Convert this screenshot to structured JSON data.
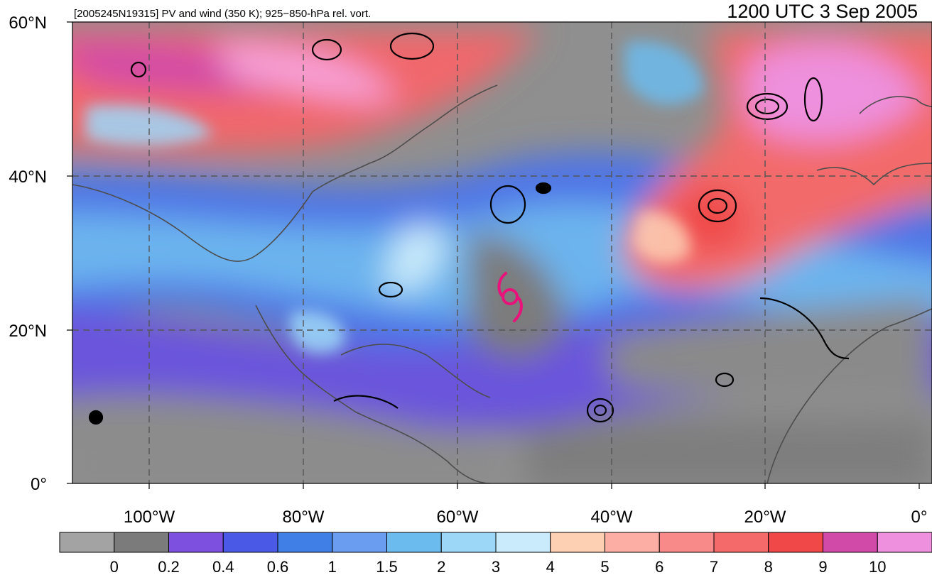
{
  "header": {
    "case_label": "[2005245N19315] PV and wind (350 K); 925−850-hPa rel. vort.",
    "valid_time": "1200 UTC 3 Sep 2005"
  },
  "map": {
    "latitude_labels": [
      "60°N",
      "40°N",
      "20°N",
      "0°"
    ],
    "longitude_labels": [
      "100°W",
      "80°W",
      "60°W",
      "40°W",
      "20°W",
      "0°"
    ],
    "gridlines": "dashed",
    "storm_symbol": "tropical-cyclone-icon",
    "storm_color": "#e8127a",
    "vorticity_contour_color": "#000000",
    "wind_barb_color": "#555555"
  },
  "colorbar": {
    "colors": [
      "#a3a3a3",
      "#7b7b7b",
      "#7d50e0",
      "#4a5ae6",
      "#3f7fe6",
      "#6a9cf0",
      "#6cbbee",
      "#9dd7f8",
      "#c9ebfb",
      "#fdcfb3",
      "#fcaea4",
      "#f98a8a",
      "#f46a6a",
      "#f04848",
      "#d24aa8",
      "#ee90dd"
    ],
    "labels": [
      "0",
      "0.2",
      "0.4",
      "0.6",
      "1",
      "1.5",
      "2",
      "3",
      "4",
      "5",
      "6",
      "7",
      "8",
      "9",
      "10"
    ]
  }
}
